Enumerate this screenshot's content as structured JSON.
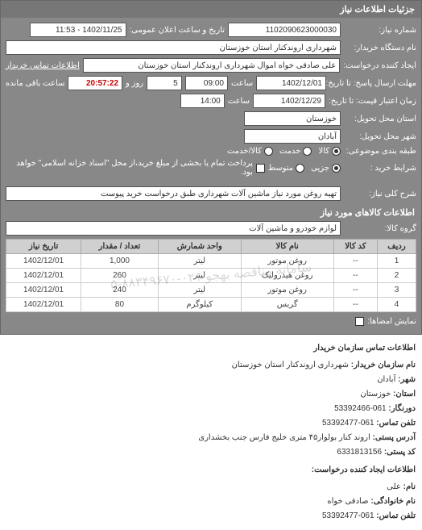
{
  "header": {
    "title": "جزئیات اطلاعات نیاز"
  },
  "fields": {
    "req_no_label": "شماره نیاز:",
    "req_no": "1102090623000030",
    "announce_label": "تاریخ و ساعت اعلان عمومی:",
    "announce": "1402/11/25 - 11:53",
    "buyer_org_label": "نام دستگاه خریدار:",
    "buyer_org": "شهرداری اروندکنار استان خوزستان",
    "requester_label": "ایجاد کننده درخواست:",
    "requester": "علی صادقی خواه اموال شهرداری اروندکنار استان خوزستان",
    "contact_link": "اطلاعات تماس خریدار",
    "deadline_send_label": "مهلت ارسال پاسخ: تا تاریخ:",
    "deadline_send_date": "1402/12/01",
    "time_label": "ساعت",
    "deadline_send_time": "09:00",
    "days_label": "روز و",
    "days": "5",
    "remain_label": "ساعت باقی مانده",
    "remain": "20:57:22",
    "valid_label": "زمان اعتبار قیمت: تا تاریخ:",
    "valid_date": "1402/12/29",
    "valid_time": "14:00",
    "province_label": "استان محل تحویل:",
    "province": "خوزستان",
    "city_label": "شهر محل تحویل:",
    "city": "آبادان",
    "subject_type_label": "طبقه بندی موضوعی:",
    "subject_all": "کالا",
    "subject_svc": "خدمت",
    "subject_both": "کالا/خدمت",
    "buy_type_label": "شرایط خرید :",
    "bt_minor": "جزیی",
    "bt_medium": "متوسط",
    "checkbox_note": "پرداخت تمام یا بخشی از مبلغ خرید،از محل \"اسناد خزانه اسلامی\" خواهد بود.",
    "desc_label": "شرح کلی نیاز:",
    "desc": "تهیه روغن مورد نیاز ماشین آلات شهرداری طبق درخواست خرید پیوست",
    "goods_section": "اطلاعات کالاهای مورد نیاز",
    "group_label": "گروه کالا:",
    "group": "لوازم خودرو و ماشین آلات"
  },
  "table": {
    "headers": [
      "ردیف",
      "کد کالا",
      "نام کالا",
      "واحد شمارش",
      "تعداد / مقدار",
      "تاریخ نیاز"
    ],
    "rows": [
      [
        "1",
        "--",
        "روغن موتور",
        "لیتر",
        "1,000",
        "1402/12/01"
      ],
      [
        "2",
        "--",
        "روغن هیدرولیک",
        "لیتر",
        "260",
        "1402/12/01"
      ],
      [
        "3",
        "--",
        "روغن موتور",
        "لیتر",
        "240",
        "1402/12/01"
      ],
      [
        "4",
        "--",
        "گریس",
        "کیلوگرم",
        "80",
        "1402/12/01"
      ]
    ],
    "watermark": "سامانه مناقصه بهجو",
    "watermark2": "۰۲۱-۸۸۳۴۹۶۷۰-۵"
  },
  "signature": {
    "show_label": "نمایش امضاها:"
  },
  "footer": {
    "title": "اطلاعات تماس سازمان خریدار",
    "org_label": "نام سازمان خریدار:",
    "org": "شهرداری اروندکنار استان خوزستان",
    "city_label": "شهر:",
    "city": "آبادان",
    "province_label": "استان:",
    "province": "خوزستان",
    "fax_label": "دورنگار:",
    "fax": "061-53392466",
    "tel_label": "تلفن تماس:",
    "tel": "061-53392477",
    "addr_label": "آدرس پستی:",
    "addr": "اروند کنار بولوار۴۵ متری خلیج فارس جنب بخشداری",
    "zip_label": "کد پستی:",
    "zip": "6331813156",
    "section2": "اطلاعات ایجاد کننده درخواست:",
    "fname_label": "نام:",
    "fname": "علی",
    "lname_label": "نام خانوادگی:",
    "lname": "صادقی خواه",
    "tel2_label": "تلفن تماس:",
    "tel2": "061-53392477"
  }
}
